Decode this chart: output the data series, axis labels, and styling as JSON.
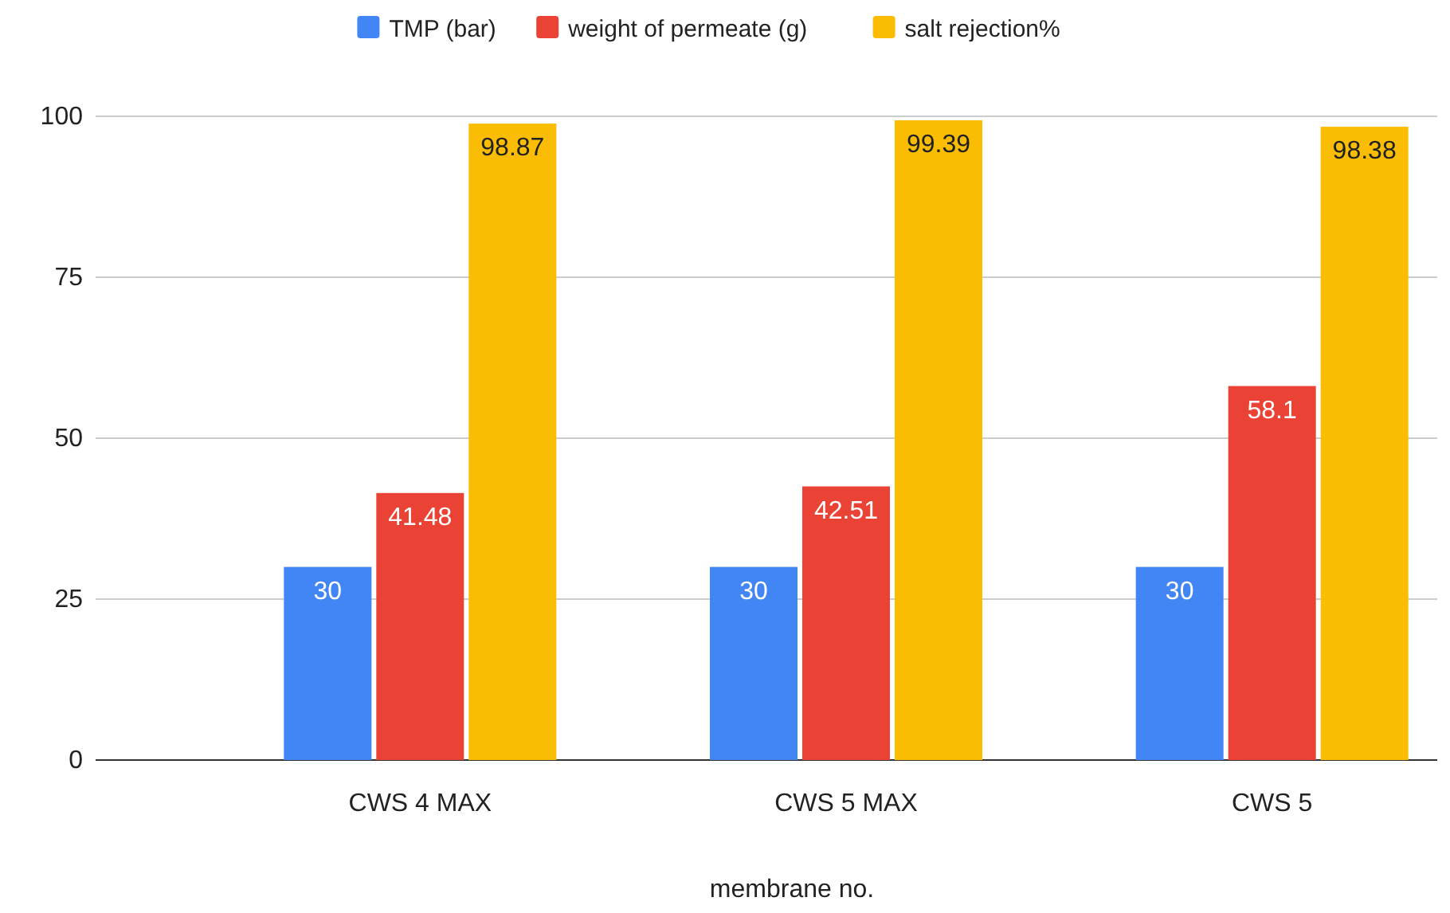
{
  "chart_data": {
    "type": "bar",
    "xlabel": "membrane no.",
    "categories": [
      "CWS 4 MAX",
      "CWS 5 MAX",
      "CWS 5"
    ],
    "series": [
      {
        "name": "TMP (bar)",
        "color": "#4285f4",
        "values": [
          30,
          30,
          30
        ]
      },
      {
        "name": "weight of permeate (g)",
        "color": "#ea4335",
        "values": [
          41.48,
          42.51,
          58.1
        ]
      },
      {
        "name": "salt rejection%",
        "color": "#fbbc04",
        "values": [
          98.87,
          99.39,
          98.38
        ]
      }
    ],
    "ylim": [
      0,
      100
    ],
    "yticks": [
      0,
      25,
      50,
      75,
      100
    ],
    "grid": "y",
    "legend": "top",
    "data_labels": true
  }
}
